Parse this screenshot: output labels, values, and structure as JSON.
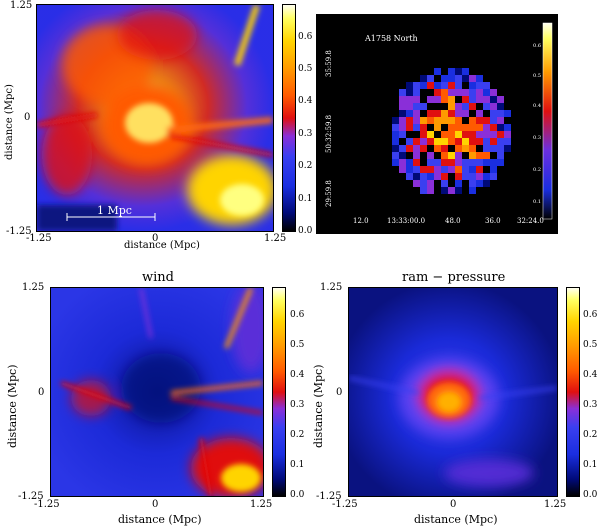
{
  "colors": {
    "colormap": [
      "#000000",
      "#000a78",
      "#1a2ee0",
      "#3a3ff0",
      "#8a2fd8",
      "#e01010",
      "#ff5a00",
      "#ff9a00",
      "#ffd400",
      "#ffff60",
      "#fffff0"
    ]
  },
  "chart_data": [
    {
      "type": "heatmap",
      "panel": "top-left",
      "title": "",
      "xlabel": "distance (Mpc)",
      "ylabel": "distance (Mpc)",
      "x_ticks": [
        "-1.25",
        "0",
        "1.25"
      ],
      "y_ticks": [
        "1.25",
        "0",
        "-1.25"
      ],
      "xlim": [
        -1.25,
        1.25
      ],
      "ylim": [
        -1.25,
        1.25
      ],
      "annotation": "1 Mpc",
      "colorbar": {
        "range": [
          0,
          0.7
        ],
        "ticks": [
          "0.0",
          "0.1",
          "0.2",
          "0.3",
          "0.4",
          "0.5",
          "0.6"
        ]
      }
    },
    {
      "type": "heatmap",
      "panel": "top-right",
      "title": "A1758 North",
      "x_ticks": [
        "12.0",
        "13:33:00.0",
        "48.0",
        "36.0",
        "32:24.0"
      ],
      "y_ticks": [
        "35:59.8",
        "50:32:59.8",
        "29:59.8"
      ],
      "colorbar": {
        "ticks": [
          "0.6",
          "0.5",
          "0.4",
          "0.3",
          "0.2",
          "0.1"
        ]
      }
    },
    {
      "type": "heatmap",
      "panel": "bottom-left",
      "title": "wind",
      "xlabel": "distance (Mpc)",
      "ylabel": "distance (Mpc)",
      "x_ticks": [
        "-1.25",
        "0",
        "1.25"
      ],
      "y_ticks": [
        "1.25",
        "0",
        "-1.25"
      ],
      "xlim": [
        -1.25,
        1.25
      ],
      "ylim": [
        -1.25,
        1.25
      ],
      "colorbar": {
        "range": [
          0,
          0.7
        ],
        "ticks": [
          "0.0",
          "0.1",
          "0.2",
          "0.3",
          "0.4",
          "0.5",
          "0.6"
        ]
      }
    },
    {
      "type": "heatmap",
      "panel": "bottom-right",
      "title": "ram − pressure",
      "xlabel": "distance (Mpc)",
      "ylabel": "distance (Mpc)",
      "x_ticks": [
        "-1.25",
        "0",
        "1.25"
      ],
      "y_ticks": [
        "1.25",
        "0",
        "-1.25"
      ],
      "xlim": [
        -1.25,
        1.25
      ],
      "ylim": [
        -1.25,
        1.25
      ],
      "colorbar": {
        "range": [
          0,
          0.7
        ],
        "ticks": [
          "0.0",
          "0.1",
          "0.2",
          "0.3",
          "0.4",
          "0.5",
          "0.6"
        ]
      }
    }
  ]
}
